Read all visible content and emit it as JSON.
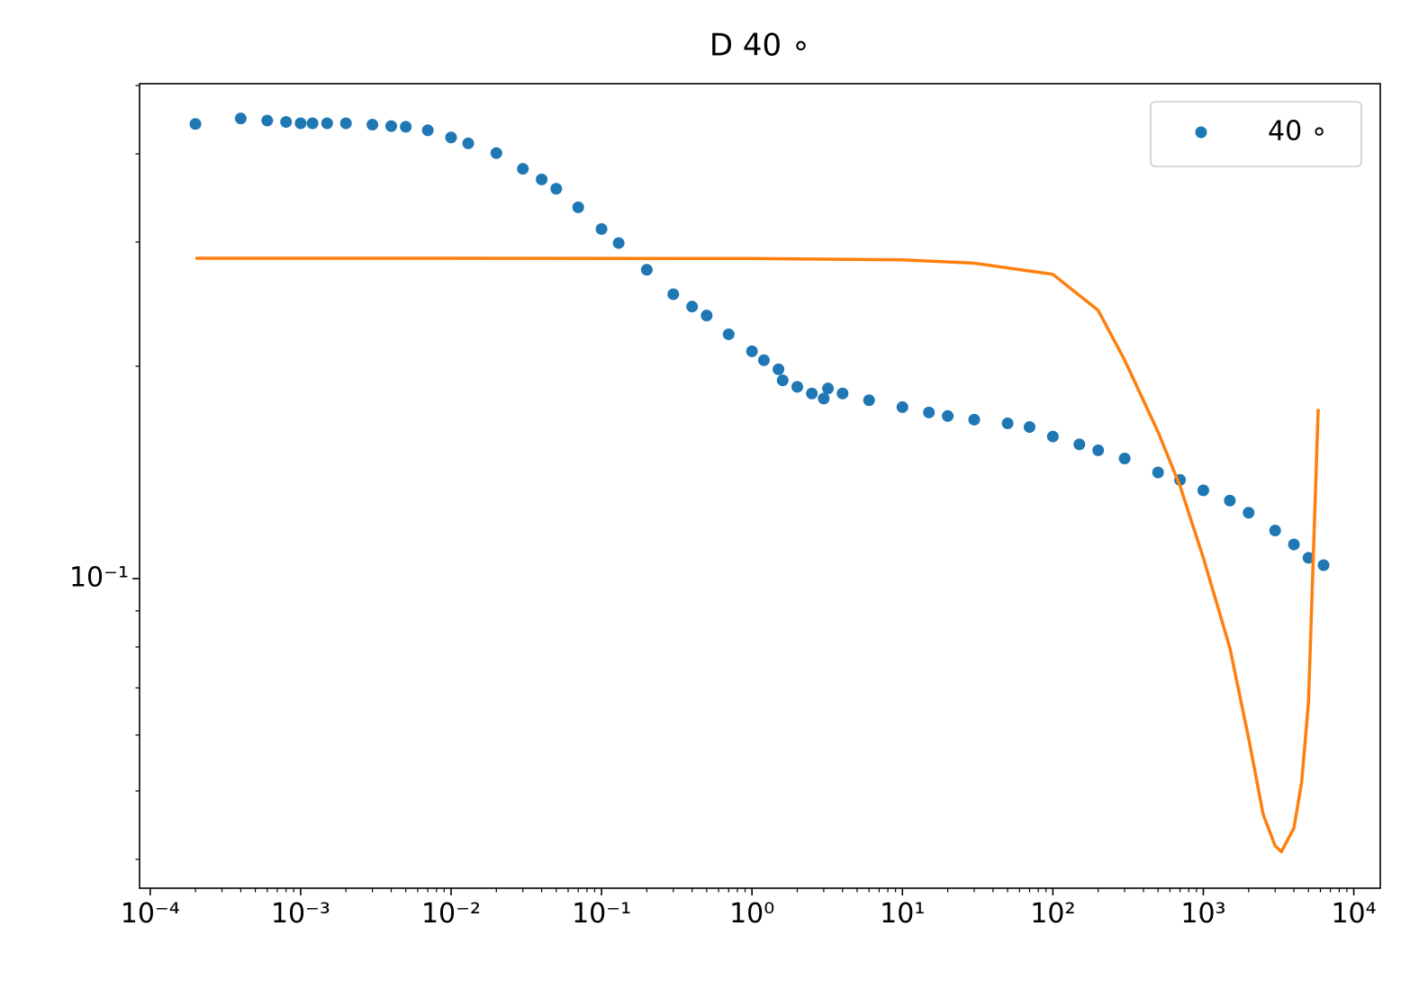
{
  "chart_data": {
    "type": "scatter",
    "title": "D 40 ∘",
    "xscale": "log",
    "yscale": "log",
    "xlim": [
      8.5e-05,
      15000
    ],
    "ylim": [
      0.0364,
      0.503
    ],
    "xticks": [
      {
        "value": 0.0001,
        "label": "10⁻⁴"
      },
      {
        "value": 0.001,
        "label": "10⁻³"
      },
      {
        "value": 0.01,
        "label": "10⁻²"
      },
      {
        "value": 0.1,
        "label": "10⁻¹"
      },
      {
        "value": 1,
        "label": "10⁰"
      },
      {
        "value": 10,
        "label": "10¹"
      },
      {
        "value": 100,
        "label": "10²"
      },
      {
        "value": 1000,
        "label": "10³"
      },
      {
        "value": 10000,
        "label": "10⁴"
      }
    ],
    "xminorticks": [
      0.0002,
      0.0003,
      0.0004,
      0.0005,
      0.0006,
      0.0007,
      0.0008,
      0.0009,
      0.002,
      0.003,
      0.004,
      0.005,
      0.006,
      0.007,
      0.008,
      0.009,
      0.02,
      0.03,
      0.04,
      0.05,
      0.06,
      0.07,
      0.08,
      0.09,
      0.2,
      0.3,
      0.4,
      0.5,
      0.6,
      0.7,
      0.8,
      0.9,
      2,
      3,
      4,
      5,
      6,
      7,
      8,
      9,
      20,
      30,
      40,
      50,
      60,
      70,
      80,
      90,
      200,
      300,
      400,
      500,
      600,
      700,
      800,
      900,
      2000,
      3000,
      4000,
      5000,
      6000,
      7000,
      8000,
      9000
    ],
    "yticks": [
      {
        "value": 0.1,
        "label": "10⁻¹"
      }
    ],
    "yminorticks": [
      0.04,
      0.05,
      0.06,
      0.07,
      0.08,
      0.09,
      0.2,
      0.3,
      0.4,
      0.5
    ],
    "legend": "upper right",
    "series": [
      {
        "name": "40 ∘",
        "type": "scatter",
        "color": "#1f77b4",
        "x": [
          0.0002,
          0.0004,
          0.0006,
          0.0008,
          0.001,
          0.0012,
          0.0015,
          0.002,
          0.003,
          0.004,
          0.005,
          0.007,
          0.01,
          0.013,
          0.02,
          0.03,
          0.04,
          0.05,
          0.07,
          0.1,
          0.13,
          0.2,
          0.3,
          0.4,
          0.5,
          0.7,
          1,
          1.2,
          1.5,
          1.6,
          2,
          2.5,
          3,
          3.2,
          4,
          6,
          10,
          15,
          20,
          30,
          50,
          70,
          100,
          150,
          200,
          300,
          500,
          700,
          1000,
          1500,
          2000,
          3000,
          4000,
          5000,
          6300
        ],
        "values": [
          0.441,
          0.449,
          0.446,
          0.444,
          0.442,
          0.442,
          0.442,
          0.442,
          0.44,
          0.438,
          0.437,
          0.432,
          0.422,
          0.414,
          0.401,
          0.381,
          0.368,
          0.357,
          0.336,
          0.313,
          0.299,
          0.274,
          0.253,
          0.243,
          0.236,
          0.222,
          0.21,
          0.204,
          0.198,
          0.191,
          0.187,
          0.183,
          0.18,
          0.186,
          0.183,
          0.179,
          0.175,
          0.172,
          0.17,
          0.168,
          0.166,
          0.164,
          0.159,
          0.155,
          0.152,
          0.148,
          0.1414,
          0.138,
          0.1334,
          0.129,
          0.124,
          0.117,
          0.1118,
          0.107,
          0.1045
        ]
      },
      {
        "type": "line",
        "color": "#ff7f0e",
        "x": [
          0.0002,
          0.01,
          1,
          10,
          30,
          100,
          200,
          300,
          500,
          700,
          1000,
          1500,
          2000,
          2500,
          3000,
          3300,
          4000,
          4500,
          5000,
          5800
        ],
        "values": [
          0.2845,
          0.2845,
          0.2843,
          0.283,
          0.28,
          0.27,
          0.24,
          0.204,
          0.1614,
          0.1353,
          0.107,
          0.0798,
          0.0594,
          0.0463,
          0.0418,
          0.041,
          0.0443,
          0.0514,
          0.0668,
          0.174
        ]
      }
    ]
  }
}
